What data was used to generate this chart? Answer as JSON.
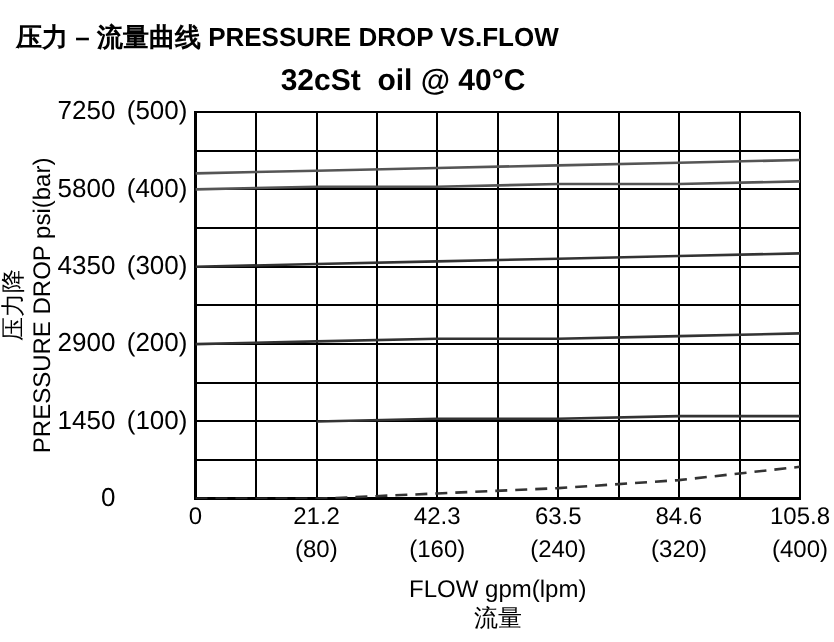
{
  "chart_data": {
    "type": "line",
    "title": "压力 – 流量曲线 PRESSURE DROP VS.FLOW",
    "subtitle": "32cSt  oil @ 40°C",
    "xlabel": "FLOW gpm(lpm)\n流量",
    "ylabel": "压力降\nPRESSURE DROP psi(bar)",
    "x": [
      0,
      21.2,
      42.3,
      63.5,
      84.6,
      105.8
    ],
    "series": [
      {
        "color": "#555555",
        "values": [
          6100,
          6150,
          6200,
          6250,
          6300,
          6350
        ],
        "line_style": "solid"
      },
      {
        "color": "#555555",
        "values": [
          5800,
          5850,
          5850,
          5900,
          5900,
          5950
        ],
        "line_style": "solid"
      },
      {
        "color": "#333333",
        "values": [
          4350,
          4400,
          4450,
          4500,
          4550,
          4600
        ],
        "line_style": "solid"
      },
      {
        "color": "#333333",
        "values": [
          2900,
          2950,
          3000,
          3000,
          3050,
          3100
        ],
        "line_style": "solid"
      },
      {
        "color": "#333333",
        "values": [
          null,
          1450,
          1500,
          1500,
          1550,
          1550
        ],
        "line_style": "solid"
      },
      {
        "color": "#333333",
        "values": [
          0,
          0,
          100,
          200,
          350,
          600
        ],
        "line_style": "dashed"
      }
    ],
    "xlim": [
      0,
      105.8
    ],
    "xticks": [
      0,
      {
        "value": 10.58,
        "label": null
      },
      21.2,
      {
        "value": 31.74,
        "label": null
      },
      42.3,
      {
        "value": 52.9,
        "label": null
      },
      63.5,
      {
        "value": 74.06,
        "label": null
      },
      84.6,
      {
        "value": 95.22,
        "label": null
      },
      105.8
    ],
    "x2lim": [
      0,
      400
    ],
    "x2ticks": [
      {
        "value": 80,
        "label": "(80)"
      },
      {
        "value": 160,
        "label": "(160)"
      },
      {
        "value": 240,
        "label": "(240)"
      },
      {
        "value": 320,
        "label": "(320)"
      },
      {
        "value": 400,
        "label": "(400)"
      }
    ],
    "ylim": [
      0,
      7250
    ],
    "yticks": [
      0,
      {
        "value": 725,
        "label": null
      },
      1450,
      {
        "value": 2175,
        "label": null
      },
      2900,
      {
        "value": 3625,
        "label": null
      },
      4350,
      {
        "value": 5075,
        "label": null
      },
      5800,
      {
        "value": 6525,
        "label": null
      },
      7250
    ],
    "y2lim": [
      0,
      500
    ],
    "y2ticks": [
      {
        "value": 100,
        "label": "(100)"
      },
      {
        "value": 200,
        "label": "(200)"
      },
      {
        "value": 300,
        "label": "(300)"
      },
      {
        "value": 400,
        "label": "(400)"
      },
      {
        "value": 500,
        "label": "(500)"
      }
    ],
    "grid": true,
    "legend": false,
    "marker": "none"
  }
}
